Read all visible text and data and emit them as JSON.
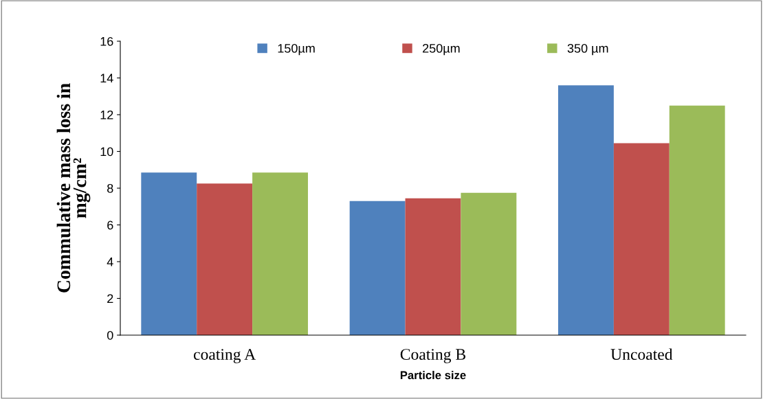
{
  "chart_data": {
    "type": "bar",
    "xlabel": "Particle size",
    "ylabel": "Commulative mass loss in\nmg/cm²",
    "categories": [
      "coating A",
      "Coating B",
      "Uncoated"
    ],
    "series": [
      {
        "name": "150µm",
        "color": "#4f81bd",
        "values": [
          8.85,
          7.3,
          13.6
        ]
      },
      {
        "name": "250µm",
        "color": "#c0504d",
        "values": [
          8.25,
          7.45,
          10.45
        ]
      },
      {
        "name": "350 µm",
        "color": "#9bbb59",
        "values": [
          8.85,
          7.75,
          12.5
        ]
      }
    ],
    "ylim": [
      0,
      16
    ],
    "yticks": [
      0,
      2,
      4,
      6,
      8,
      10,
      12,
      14,
      16
    ],
    "grid": false,
    "legend": "top"
  }
}
